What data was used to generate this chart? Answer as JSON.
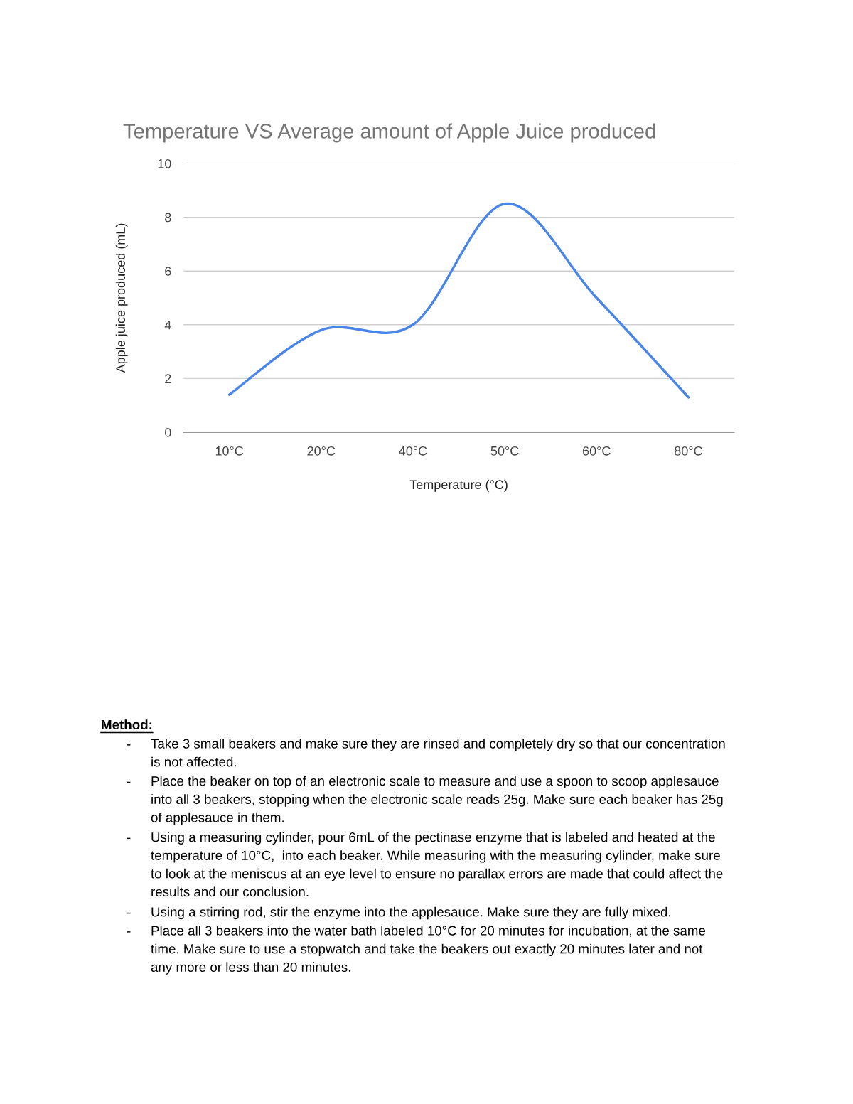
{
  "chart_data": {
    "type": "line",
    "title": "Temperature VS Average amount of Apple Juice produced",
    "xlabel": "Temperature (°C)",
    "ylabel": "Apple juice produced (mL)",
    "categories": [
      "10°C",
      "20°C",
      "40°C",
      "50°C",
      "60°C",
      "80°C"
    ],
    "series": [
      {
        "color": "#4a86e8",
        "values": [
          1.4,
          3.8,
          4.0,
          8.5,
          5.0,
          1.3
        ]
      }
    ],
    "ylim": [
      0,
      10
    ],
    "yticks": [
      0,
      2,
      4,
      6,
      8,
      10
    ],
    "grid": "y",
    "legend": false,
    "marker": "none",
    "line_style": "solid",
    "annotations": [
      "Method:",
      "- Take 3 small beakers and make sure they are rinsed and completely dry so that our concentration\nis not affected.",
      "- Place the beaker on top of an electronic scale to measure and use a spoon to scoop applesauce\ninto all 3 beakers, stopping when the electronic scale reads 25g. Make sure each beaker has 25g\nof applesauce in them.",
      "- Using a measuring cylinder, pour 6mL of the pectinase enzyme that is labeled and heated at the\ntemperature of 10°C,  into each beaker. While measuring with the measuring cylinder, make sure\nto look at the meniscus at an eye level to ensure no parallax errors are made that could affect the\nresults and our conclusion.",
      "- Using a stirring rod, stir the enzyme into the applesauce. Make sure they are fully mixed.",
      "- Place all 3 beakers into the water bath labeled 10°C for 20 minutes for incubation, at the same\ntime. Make sure to use a stopwatch and take the beakers out exactly 20 minutes later and not\nany more or less than 20 minutes."
    ]
  }
}
